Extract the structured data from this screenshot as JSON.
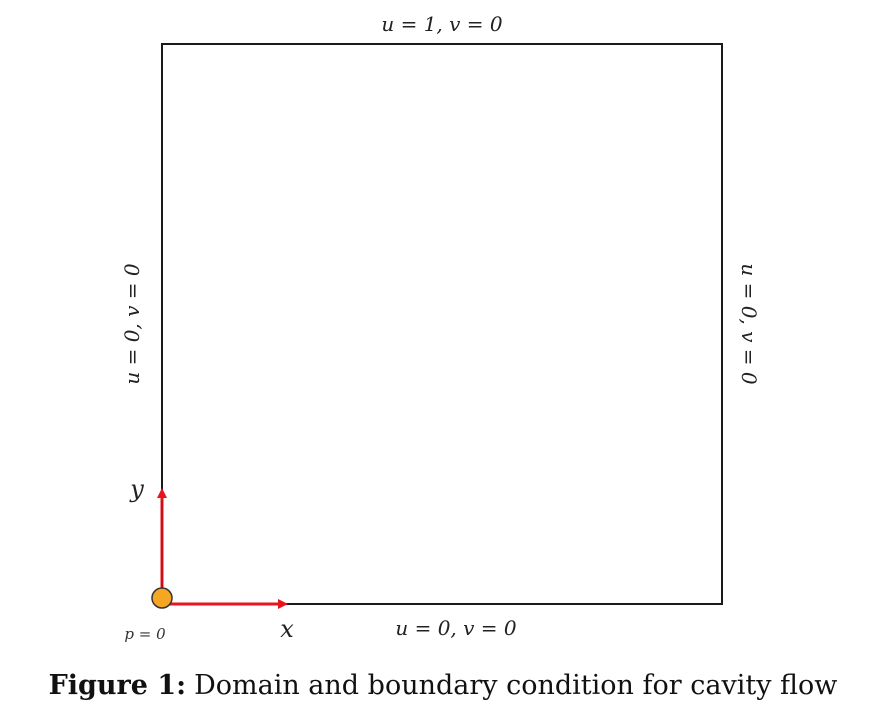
{
  "diagram": {
    "top_bc": "u = 1,  v = 0",
    "bottom_bc": "u = 0,  v = 0",
    "left_bc": "u = 0,  v = 0",
    "right_bc": "u = 0,  v = 0",
    "x_axis_label": "x",
    "y_axis_label": "y",
    "origin_label": "p = 0",
    "colors": {
      "border": "#1a1a1a",
      "axis_arrow": "#e8141e",
      "origin_dot": "#f5a623"
    }
  },
  "caption": {
    "figure_number": "Figure 1:",
    "text": "Domain and boundary condition for cavity flow"
  }
}
